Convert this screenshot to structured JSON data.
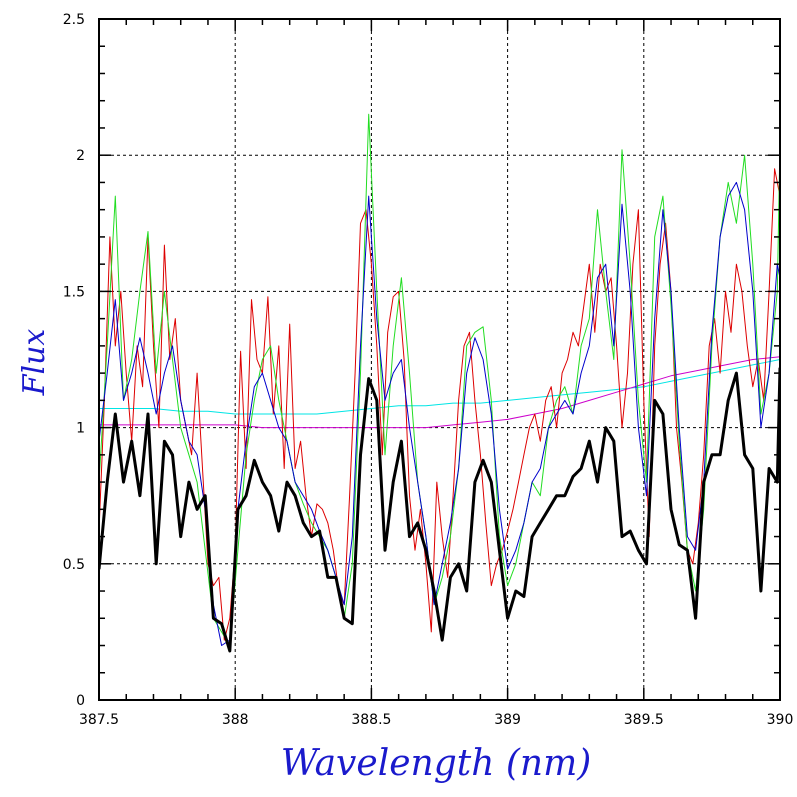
{
  "chart_data": {
    "type": "line",
    "title": "",
    "xlabel": "Wavelength (nm)",
    "ylabel": "Flux",
    "xlim": [
      387.5,
      390
    ],
    "ylim": [
      0,
      2.5
    ],
    "x_ticks": [
      387.5,
      388,
      388.5,
      389,
      389.5,
      390
    ],
    "x_tick_labels": [
      "387.5",
      "388",
      "388.5",
      "389",
      "389.5",
      "390"
    ],
    "y_ticks": [
      0,
      0.5,
      1,
      1.5,
      2,
      2.5
    ],
    "y_tick_labels": [
      "0",
      "0.5",
      "1",
      "1.5",
      "2",
      "2.5"
    ],
    "grid": true,
    "series": [
      {
        "name": "cyan",
        "color": "#00e5e5",
        "width": 1,
        "x": [
          387.5,
          387.6,
          387.7,
          387.8,
          387.9,
          388.0,
          388.1,
          388.2,
          388.3,
          388.4,
          388.5,
          388.6,
          388.7,
          388.8,
          388.9,
          389.0,
          389.1,
          389.2,
          389.3,
          389.4,
          389.5,
          389.6,
          389.7,
          389.8,
          389.9,
          390.0
        ],
        "values": [
          1.07,
          1.07,
          1.07,
          1.06,
          1.06,
          1.05,
          1.05,
          1.05,
          1.05,
          1.06,
          1.07,
          1.08,
          1.08,
          1.09,
          1.09,
          1.1,
          1.11,
          1.12,
          1.13,
          1.14,
          1.15,
          1.17,
          1.19,
          1.21,
          1.23,
          1.25
        ]
      },
      {
        "name": "magenta",
        "color": "#cc00cc",
        "width": 1,
        "x": [
          387.5,
          387.6,
          387.7,
          387.8,
          387.9,
          388.0,
          388.1,
          388.2,
          388.3,
          388.4,
          388.5,
          388.6,
          388.7,
          388.8,
          388.9,
          389.0,
          389.1,
          389.2,
          389.3,
          389.4,
          389.5,
          389.6,
          389.7,
          389.8,
          389.9,
          390.0
        ],
        "values": [
          1.01,
          1.01,
          1.01,
          1.01,
          1.01,
          1.01,
          1.0,
          1.0,
          1.0,
          1.0,
          1.0,
          1.0,
          1.0,
          1.01,
          1.02,
          1.03,
          1.05,
          1.07,
          1.1,
          1.13,
          1.16,
          1.19,
          1.21,
          1.23,
          1.25,
          1.26
        ]
      },
      {
        "name": "red",
        "color": "#dd0000",
        "width": 1,
        "x": [
          387.5,
          387.52,
          387.54,
          387.56,
          387.58,
          387.6,
          387.62,
          387.64,
          387.66,
          387.68,
          387.7,
          387.72,
          387.74,
          387.76,
          387.78,
          387.8,
          387.82,
          387.84,
          387.86,
          387.88,
          387.9,
          387.92,
          387.94,
          387.96,
          387.98,
          388.0,
          388.02,
          388.04,
          388.06,
          388.08,
          388.1,
          388.12,
          388.14,
          388.16,
          388.18,
          388.2,
          388.22,
          388.24,
          388.26,
          388.28,
          388.3,
          388.32,
          388.34,
          388.36,
          388.38,
          388.4,
          388.42,
          388.44,
          388.46,
          388.48,
          388.5,
          388.52,
          388.54,
          388.56,
          388.58,
          388.6,
          388.62,
          388.64,
          388.66,
          388.68,
          388.7,
          388.72,
          388.74,
          388.76,
          388.78,
          388.8,
          388.82,
          388.84,
          388.86,
          388.88,
          388.9,
          388.92,
          388.94,
          388.96,
          388.98,
          389.0,
          389.02,
          389.04,
          389.06,
          389.08,
          389.1,
          389.12,
          389.14,
          389.16,
          389.18,
          389.2,
          389.22,
          389.24,
          389.26,
          389.28,
          389.3,
          389.32,
          389.34,
          389.36,
          389.38,
          389.4,
          389.42,
          389.44,
          389.46,
          389.48,
          389.5,
          389.52,
          389.54,
          389.56,
          389.58,
          389.6,
          389.62,
          389.64,
          389.66,
          389.68,
          389.7,
          389.72,
          389.74,
          389.76,
          389.78,
          389.8,
          389.82,
          389.84,
          389.86,
          389.88,
          389.9,
          389.92,
          389.94,
          389.96,
          389.98,
          390.0
        ],
        "values": [
          0.62,
          1.1,
          1.7,
          1.3,
          1.5,
          1.2,
          0.95,
          1.3,
          1.15,
          1.7,
          1.3,
          1.0,
          1.67,
          1.25,
          1.4,
          1.1,
          1.0,
          0.9,
          1.2,
          0.85,
          0.5,
          0.42,
          0.45,
          0.22,
          0.3,
          0.55,
          1.28,
          0.85,
          1.47,
          1.25,
          1.2,
          1.48,
          1.05,
          1.3,
          0.85,
          1.38,
          0.85,
          0.95,
          0.75,
          0.6,
          0.72,
          0.7,
          0.65,
          0.55,
          0.4,
          0.35,
          0.75,
          1.2,
          1.75,
          1.8,
          1.6,
          1.3,
          0.9,
          1.35,
          1.48,
          1.5,
          1.25,
          0.75,
          0.55,
          0.7,
          0.5,
          0.25,
          0.8,
          0.6,
          0.45,
          0.75,
          1.1,
          1.3,
          1.35,
          1.1,
          0.9,
          0.65,
          0.42,
          0.5,
          0.55,
          0.62,
          0.7,
          0.8,
          0.9,
          1.0,
          1.05,
          0.95,
          1.1,
          1.15,
          1.0,
          1.2,
          1.25,
          1.35,
          1.3,
          1.45,
          1.6,
          1.35,
          1.6,
          1.5,
          1.55,
          1.3,
          1.0,
          1.2,
          1.6,
          1.8,
          1.1,
          0.6,
          1.3,
          1.6,
          1.75,
          1.5,
          1.0,
          0.8,
          0.55,
          0.5,
          0.65,
          0.9,
          1.3,
          1.4,
          1.2,
          1.5,
          1.35,
          1.6,
          1.5,
          1.3,
          1.15,
          1.25,
          1.1,
          1.5,
          1.95,
          1.85
        ]
      },
      {
        "name": "green",
        "color": "#22dd22",
        "width": 1,
        "x": [
          387.5,
          387.53,
          387.56,
          387.59,
          387.62,
          387.65,
          387.68,
          387.71,
          387.74,
          387.77,
          387.8,
          387.83,
          387.86,
          387.89,
          387.92,
          387.95,
          387.98,
          388.01,
          388.04,
          388.07,
          388.1,
          388.13,
          388.16,
          388.19,
          388.22,
          388.25,
          388.28,
          388.31,
          388.34,
          388.37,
          388.4,
          388.43,
          388.46,
          388.49,
          388.52,
          388.55,
          388.58,
          388.61,
          388.64,
          388.67,
          388.7,
          388.73,
          388.76,
          388.79,
          388.82,
          388.85,
          388.88,
          388.91,
          388.94,
          388.97,
          389.0,
          389.03,
          389.06,
          389.09,
          389.12,
          389.15,
          389.18,
          389.21,
          389.24,
          389.27,
          389.3,
          389.33,
          389.36,
          389.39,
          389.42,
          389.45,
          389.48,
          389.51,
          389.54,
          389.57,
          389.6,
          389.63,
          389.66,
          389.69,
          389.72,
          389.75,
          389.78,
          389.81,
          389.84,
          389.87,
          389.9,
          389.93,
          389.96,
          389.99,
          390.0
        ],
        "values": [
          0.8,
          1.3,
          1.85,
          1.1,
          1.25,
          1.5,
          1.72,
          1.2,
          1.5,
          1.25,
          1.0,
          0.9,
          0.8,
          0.55,
          0.3,
          0.25,
          0.2,
          0.55,
          0.9,
          1.1,
          1.25,
          1.3,
          1.1,
          0.95,
          0.8,
          0.72,
          0.65,
          0.6,
          0.55,
          0.45,
          0.3,
          0.5,
          1.2,
          2.15,
          1.5,
          0.9,
          1.3,
          1.55,
          1.2,
          0.8,
          0.6,
          0.35,
          0.45,
          0.6,
          0.85,
          1.3,
          1.35,
          1.37,
          1.1,
          0.6,
          0.42,
          0.5,
          0.65,
          0.8,
          0.75,
          1.0,
          1.1,
          1.15,
          1.05,
          1.3,
          1.4,
          1.8,
          1.5,
          1.25,
          2.02,
          1.6,
          1.1,
          0.8,
          1.7,
          1.85,
          1.45,
          0.95,
          0.55,
          0.4,
          0.7,
          1.3,
          1.7,
          1.9,
          1.75,
          2.0,
          1.6,
          1.05,
          1.2,
          1.5,
          2.05
        ]
      },
      {
        "name": "blue",
        "color": "#0000cc",
        "width": 1,
        "x": [
          387.5,
          387.53,
          387.56,
          387.59,
          387.62,
          387.65,
          387.68,
          387.71,
          387.74,
          387.77,
          387.8,
          387.83,
          387.86,
          387.89,
          387.92,
          387.95,
          387.98,
          388.01,
          388.04,
          388.07,
          388.1,
          388.13,
          388.16,
          388.19,
          388.22,
          388.25,
          388.28,
          388.31,
          388.34,
          388.37,
          388.4,
          388.43,
          388.46,
          388.49,
          388.52,
          388.55,
          388.58,
          388.61,
          388.64,
          388.67,
          388.7,
          388.73,
          388.76,
          388.79,
          388.82,
          388.85,
          388.88,
          388.91,
          388.94,
          388.97,
          389.0,
          389.03,
          389.06,
          389.09,
          389.12,
          389.15,
          389.18,
          389.21,
          389.24,
          389.27,
          389.3,
          389.33,
          389.36,
          389.39,
          389.42,
          389.45,
          389.48,
          389.51,
          389.54,
          389.57,
          389.6,
          389.63,
          389.66,
          389.69,
          389.72,
          389.75,
          389.78,
          389.81,
          389.84,
          389.87,
          389.9,
          389.93,
          389.96,
          389.99,
          390.0
        ],
        "values": [
          0.95,
          1.2,
          1.47,
          1.1,
          1.2,
          1.33,
          1.2,
          1.05,
          1.2,
          1.3,
          1.1,
          0.95,
          0.9,
          0.7,
          0.35,
          0.2,
          0.22,
          0.7,
          0.95,
          1.15,
          1.2,
          1.1,
          1.0,
          0.95,
          0.8,
          0.75,
          0.7,
          0.62,
          0.55,
          0.45,
          0.35,
          0.6,
          1.3,
          1.85,
          1.4,
          1.1,
          1.2,
          1.25,
          1.0,
          0.8,
          0.6,
          0.35,
          0.5,
          0.65,
          0.85,
          1.2,
          1.33,
          1.25,
          1.05,
          0.7,
          0.48,
          0.55,
          0.65,
          0.8,
          0.85,
          1.0,
          1.05,
          1.1,
          1.05,
          1.2,
          1.3,
          1.55,
          1.6,
          1.3,
          1.82,
          1.5,
          1.0,
          0.75,
          1.4,
          1.8,
          1.5,
          1.0,
          0.6,
          0.55,
          0.8,
          1.35,
          1.7,
          1.85,
          1.9,
          1.8,
          1.5,
          1.0,
          1.2,
          1.6,
          1.55
        ]
      },
      {
        "name": "black",
        "color": "#000000",
        "width": 3,
        "x": [
          387.5,
          387.53,
          387.56,
          387.59,
          387.62,
          387.65,
          387.68,
          387.71,
          387.74,
          387.77,
          387.8,
          387.83,
          387.86,
          387.89,
          387.92,
          387.95,
          387.98,
          388.01,
          388.04,
          388.07,
          388.1,
          388.13,
          388.16,
          388.19,
          388.22,
          388.25,
          388.28,
          388.31,
          388.34,
          388.37,
          388.4,
          388.43,
          388.46,
          388.49,
          388.52,
          388.55,
          388.58,
          388.61,
          388.64,
          388.67,
          388.7,
          388.73,
          388.76,
          388.79,
          388.82,
          388.85,
          388.88,
          388.91,
          388.94,
          388.97,
          389.0,
          389.03,
          389.06,
          389.09,
          389.12,
          389.15,
          389.18,
          389.21,
          389.24,
          389.27,
          389.3,
          389.33,
          389.36,
          389.39,
          389.42,
          389.45,
          389.48,
          389.51,
          389.54,
          389.57,
          389.6,
          389.63,
          389.66,
          389.69,
          389.72,
          389.75,
          389.78,
          389.81,
          389.84,
          389.87,
          389.9,
          389.93,
          389.96,
          389.99,
          390.0
        ],
        "values": [
          0.48,
          0.8,
          1.05,
          0.8,
          0.95,
          0.75,
          1.05,
          0.5,
          0.95,
          0.9,
          0.6,
          0.8,
          0.7,
          0.75,
          0.3,
          0.28,
          0.18,
          0.7,
          0.75,
          0.88,
          0.8,
          0.75,
          0.62,
          0.8,
          0.75,
          0.65,
          0.6,
          0.62,
          0.45,
          0.45,
          0.3,
          0.28,
          0.9,
          1.18,
          1.1,
          0.55,
          0.8,
          0.95,
          0.6,
          0.65,
          0.55,
          0.4,
          0.22,
          0.45,
          0.5,
          0.4,
          0.8,
          0.88,
          0.8,
          0.55,
          0.3,
          0.4,
          0.38,
          0.6,
          0.65,
          0.7,
          0.75,
          0.75,
          0.82,
          0.85,
          0.95,
          0.8,
          1.0,
          0.95,
          0.6,
          0.62,
          0.55,
          0.5,
          1.1,
          1.05,
          0.7,
          0.57,
          0.55,
          0.3,
          0.8,
          0.9,
          0.9,
          1.1,
          1.2,
          0.9,
          0.85,
          0.4,
          0.85,
          0.8,
          1.22
        ]
      }
    ]
  }
}
